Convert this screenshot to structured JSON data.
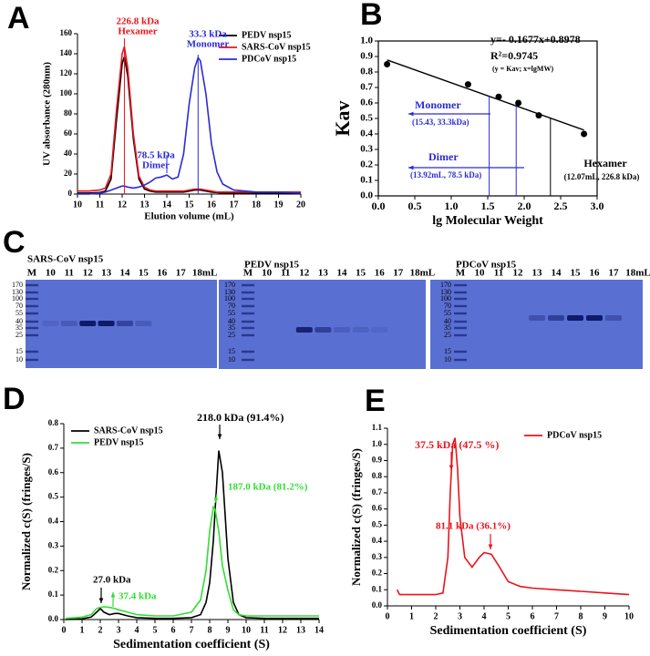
{
  "chart_data": [
    {
      "panel": "A",
      "type": "line",
      "x_label": "Elution volume (mL)",
      "y_label": "UV absorbance (280nm)",
      "xlim": [
        10,
        20
      ],
      "xticks": [
        10,
        11,
        12,
        13,
        14,
        15,
        16,
        17,
        18,
        19,
        20
      ],
      "ylim": [
        0,
        160
      ],
      "yticks": [
        0,
        20,
        40,
        60,
        80,
        100,
        120,
        140,
        160
      ],
      "legend": "upper right",
      "x": [
        10,
        10.5,
        11,
        11.25,
        11.5,
        11.75,
        12,
        12.1,
        12.25,
        12.5,
        12.75,
        13,
        13.25,
        13.5,
        13.75,
        14,
        14.25,
        14.5,
        14.75,
        15,
        15.25,
        15.4,
        15.5,
        15.75,
        16,
        16.25,
        16.5,
        17,
        17.5,
        18,
        19,
        20
      ],
      "series": [
        {
          "name": "PEDV nsp15",
          "color": "#000000",
          "values": [
            1,
            1,
            1.5,
            3,
            15,
            75,
            130,
            137,
            118,
            55,
            15,
            5,
            3,
            2,
            2,
            2,
            2,
            2,
            2,
            3,
            4,
            4,
            4,
            3,
            2,
            1.5,
            1,
            1,
            1,
            1,
            1,
            1
          ]
        },
        {
          "name": "SARS-CoV nsp15",
          "color": "#e8141c",
          "values": [
            3,
            3,
            4,
            6,
            20,
            85,
            140,
            147,
            126,
            60,
            18,
            7,
            4,
            3,
            3,
            3,
            3,
            3,
            3,
            4,
            5,
            5,
            5,
            4,
            3,
            2,
            2,
            2,
            2,
            2,
            2,
            2
          ]
        },
        {
          "name": "PDCoV nsp15",
          "color": "#2b2bd6",
          "values": [
            0,
            0,
            1,
            2,
            4,
            6,
            8,
            8,
            7,
            6,
            7,
            9,
            12,
            16,
            17,
            19,
            15,
            17,
            40,
            90,
            126,
            136,
            133,
            100,
            50,
            22,
            10,
            4,
            3,
            2,
            2,
            1
          ]
        }
      ],
      "markers": [
        {
          "x": 12.1,
          "color": "#e8141c"
        },
        {
          "x": 15.4,
          "color": "#2b2bd6"
        },
        {
          "x": 14.0,
          "color": "#2b2bd6"
        }
      ],
      "annotations": [
        {
          "text": "226.8 kDa",
          "color": "#e8141c"
        },
        {
          "text": "Hexamer",
          "color": "#e8141c"
        },
        {
          "text": "33.3 kDa",
          "color": "#2b2bd6"
        },
        {
          "text": "Monomer",
          "color": "#2b2bd6"
        },
        {
          "text": "78.5 kDa",
          "color": "#2b2bd6"
        },
        {
          "text": "Dimer",
          "color": "#2b2bd6"
        }
      ]
    },
    {
      "panel": "B",
      "type": "scatter",
      "x_label": "lg Molecular Weight",
      "y_label": "Kav",
      "xlim": [
        0,
        3
      ],
      "xticks": [
        {
          "value": 0,
          "label": "0.0"
        },
        0.5,
        {
          "value": 1,
          "label": "1.0"
        },
        1.5,
        {
          "value": 2,
          "label": "2.0"
        },
        2.5,
        {
          "value": 3,
          "label": "3.0"
        }
      ],
      "ylim": [
        0,
        1
      ],
      "yticks": [
        {
          "value": 0,
          "label": "0.0"
        },
        0.1,
        0.2,
        0.3,
        0.4,
        0.5,
        0.6,
        0.7,
        0.8,
        0.9,
        {
          "value": 1,
          "label": "1.0"
        }
      ],
      "box": true,
      "color": "#000000",
      "x": [
        0.12,
        1.23,
        1.65,
        1.92,
        2.2,
        2.82
      ],
      "values": [
        0.85,
        0.72,
        0.64,
        0.6,
        0.52,
        0.4
      ],
      "fit": {
        "slope": -0.1677,
        "intercept": 0.8978
      },
      "markers": [
        {
          "x": 1.52,
          "color": "#2b2bd6"
        },
        {
          "x": 1.89,
          "color": "#2b2bd6"
        },
        {
          "x": 2.36,
          "color": "#000000"
        }
      ],
      "annotations": [
        {
          "text": "y=- 0.1677x+0.8978",
          "color": "#000000"
        },
        {
          "text": "R²=0.9745",
          "color": "#000000"
        },
        {
          "text": "(y = Kav; x=lgMW)",
          "color": "#000000"
        },
        {
          "text": "Monomer",
          "color": "#2b2bd6"
        },
        {
          "text": "(15.43, 33.3kDa)",
          "color": "#2b2bd6"
        },
        {
          "text": "Dimer",
          "color": "#2b2bd6"
        },
        {
          "text": "(13.92mL, 78.5 kDa)",
          "color": "#2b2bd6"
        },
        {
          "text": "Hexamer",
          "color": "#000000"
        },
        {
          "text": "(12.07mL, 226.8 kDa)",
          "color": "#000000"
        }
      ]
    },
    {
      "panel": "D",
      "type": "line",
      "x_label": "Sedimentation coefficient (S)",
      "y_label": "Normalized c(S) (fringes/S)",
      "xlim": [
        0,
        14
      ],
      "xticks": [
        0,
        1,
        2,
        3,
        4,
        5,
        6,
        7,
        8,
        9,
        10,
        11,
        12,
        13,
        14
      ],
      "ylim": [
        0,
        0.8
      ],
      "yticks": [
        {
          "value": 0,
          "label": "0.0"
        },
        0.1,
        0.2,
        0.3,
        0.4,
        0.5,
        0.6,
        0.7,
        0.8
      ],
      "legend": "upper left",
      "x": [
        0.1,
        1,
        1.5,
        1.8,
        2,
        2.2,
        2.5,
        2.8,
        3,
        3.5,
        4,
        5,
        6,
        7,
        7.5,
        7.8,
        8,
        8.2,
        8.3,
        8.5,
        8.7,
        9,
        9.3,
        9.6,
        10,
        11,
        12,
        13,
        14
      ],
      "series": [
        {
          "name": "SARS-CoV nsp15",
          "color": "#000000",
          "values": [
            0,
            0.003,
            0.01,
            0.03,
            0.045,
            0.03,
            0.02,
            0.025,
            0.025,
            0.015,
            0.008,
            0.005,
            0.005,
            0.008,
            0.02,
            0.07,
            0.15,
            0.32,
            0.45,
            0.69,
            0.6,
            0.25,
            0.07,
            0.02,
            0.008,
            0.005,
            0.005,
            0.005,
            0.005
          ]
        },
        {
          "name": "PEDV nsp15",
          "color": "#33dd33",
          "values": [
            0.005,
            0.01,
            0.02,
            0.045,
            0.05,
            0.052,
            0.05,
            0.045,
            0.04,
            0.03,
            0.02,
            0.015,
            0.015,
            0.03,
            0.08,
            0.2,
            0.36,
            0.46,
            0.45,
            0.36,
            0.22,
            0.12,
            0.04,
            0.02,
            0.015,
            0.015,
            0.015,
            0.015,
            0.015
          ]
        }
      ],
      "annotations": [
        {
          "text": "218.0 kDa (91.4%)",
          "color": "#000000"
        },
        {
          "text": "187.0 kDa (81.2%)",
          "color": "#33dd33"
        },
        {
          "text": "27.0 kDa",
          "color": "#000000"
        },
        {
          "text": "37.4 kDa",
          "color": "#33dd33"
        }
      ]
    },
    {
      "panel": "E",
      "type": "line",
      "x_label": "Sedimentation coefficient (S)",
      "y_label": "Normalized c(S) (fringes/S)",
      "xlim": [
        0,
        10
      ],
      "xticks": [
        0,
        1,
        2,
        3,
        4,
        5,
        6,
        7,
        8,
        9,
        10
      ],
      "ylim": [
        0,
        1.1
      ],
      "yticks": [
        {
          "value": 0,
          "label": "0.0"
        },
        0.1,
        0.2,
        0.3,
        0.4,
        0.5,
        0.6,
        0.7,
        0.8,
        0.9,
        {
          "value": 1,
          "label": "1.0"
        },
        1.1
      ],
      "legend": "upper right",
      "x": [
        0.4,
        0.5,
        1,
        1.5,
        2,
        2.3,
        2.5,
        2.6,
        2.7,
        2.8,
        2.9,
        3,
        3.2,
        3.5,
        3.8,
        4,
        4.3,
        4.6,
        5,
        5.5,
        6,
        7,
        8,
        9,
        10
      ],
      "series": [
        {
          "name": "PDCoV nsp15",
          "color": "#e8141c",
          "values": [
            0.1,
            0.07,
            0.07,
            0.07,
            0.07,
            0.08,
            0.3,
            0.7,
            1.0,
            1.04,
            0.85,
            0.55,
            0.3,
            0.24,
            0.3,
            0.33,
            0.32,
            0.25,
            0.15,
            0.12,
            0.11,
            0.1,
            0.09,
            0.08,
            0.07
          ]
        }
      ],
      "annotations": [
        {
          "text": "37.5 kDa (47.5 %)",
          "color": "#e8141c"
        },
        {
          "text": "81.1 kDa (36.1%)",
          "color": "#e8141c"
        }
      ]
    }
  ],
  "gel_panel": "C",
  "gels": [
    {
      "title": "SARS-CoV nsp15",
      "lanes": [
        "M",
        "10",
        "11",
        "12",
        "13",
        "14",
        "15",
        "16",
        "17",
        "18mL"
      ],
      "markers": [
        170,
        130,
        100,
        70,
        55,
        40,
        35,
        25,
        15,
        10
      ]
    },
    {
      "title": "PEDV nsp15",
      "lanes": [
        "M",
        "10",
        "11",
        "12",
        "13",
        "14",
        "15",
        "16",
        "17",
        "18mL"
      ],
      "markers": [
        170,
        130,
        100,
        70,
        55,
        40,
        35,
        25,
        15,
        10
      ]
    },
    {
      "title": "PDCoV nsp15",
      "lanes": [
        "M",
        "10",
        "11",
        "12",
        "13",
        "14",
        "15",
        "16",
        "17",
        "18mL"
      ],
      "markers": [
        170,
        130,
        100,
        70,
        55,
        40,
        35,
        25,
        15,
        10
      ]
    }
  ]
}
